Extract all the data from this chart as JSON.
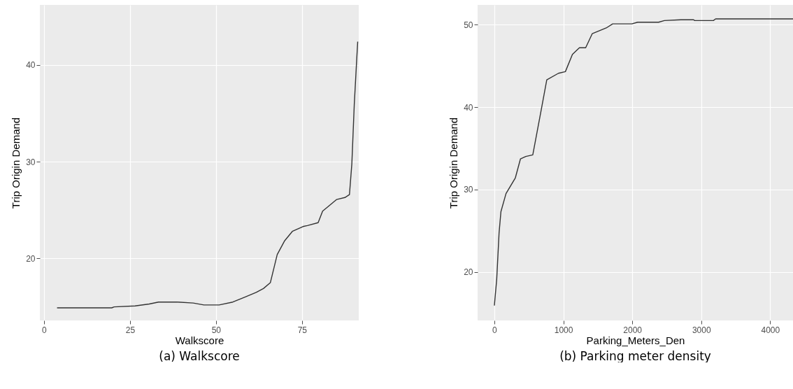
{
  "chart_data": [
    {
      "type": "line",
      "xlabel": "Walkscore",
      "ylabel": "Trip Origin Demand",
      "annotations": [
        "(a)  Walkscore"
      ],
      "xlim": [
        -1.2,
        91.5
      ],
      "ylim": [
        13.6,
        46.2
      ],
      "xticks": [
        0,
        25,
        50,
        75
      ],
      "yticks": [
        20,
        30,
        40
      ],
      "grid": true,
      "series": [
        {
          "color": "#333333",
          "x": [
            3.8,
            19.7,
            20.4,
            26.5,
            30.6,
            33.3,
            38.7,
            43.4,
            46.5,
            50.9,
            54.9,
            58.3,
            61.7,
            63.8,
            65.8,
            67.8,
            69.9,
            72.2,
            75.3,
            76.6,
            79.7,
            81.0,
            83.4,
            85.1,
            87.5,
            88.8,
            89.5,
            90.2,
            90.9,
            91.2
          ],
          "values": [
            14.9,
            14.9,
            15.0,
            15.1,
            15.3,
            15.5,
            15.5,
            15.4,
            15.2,
            15.2,
            15.5,
            16.0,
            16.5,
            16.9,
            17.5,
            20.4,
            21.8,
            22.8,
            23.3,
            23.4,
            23.7,
            24.9,
            25.6,
            26.1,
            26.3,
            26.6,
            29.8,
            35.9,
            40.5,
            42.4
          ]
        }
      ]
    },
    {
      "type": "line",
      "xlabel": "Parking_Meters_Den",
      "ylabel": "Trip Origin Demand",
      "annotations": [
        "(b)  Parking meter density"
      ],
      "xlim": [
        -243,
        4331
      ],
      "ylim": [
        14.1,
        52.4
      ],
      "xticks": [
        0,
        1000,
        2000,
        3000,
        4000
      ],
      "yticks": [
        20,
        30,
        40,
        50
      ],
      "grid": true,
      "series": [
        {
          "color": "#333333",
          "x": [
            0,
            34,
            68,
            95,
            169,
            304,
            378,
            456,
            557,
            676,
            760,
            929,
            1030,
            1132,
            1233,
            1324,
            1419,
            1622,
            1716,
            1993,
            2078,
            2382,
            2466,
            2703,
            2889,
            2905,
            3176,
            3209,
            4331
          ],
          "values": [
            15.9,
            19.1,
            24.7,
            27.3,
            29.5,
            31.4,
            33.7,
            34.0,
            34.2,
            39.5,
            43.3,
            44.1,
            44.3,
            46.4,
            47.2,
            47.2,
            48.9,
            49.6,
            50.1,
            50.1,
            50.3,
            50.3,
            50.5,
            50.6,
            50.6,
            50.5,
            50.5,
            50.7,
            50.7
          ]
        }
      ]
    }
  ]
}
